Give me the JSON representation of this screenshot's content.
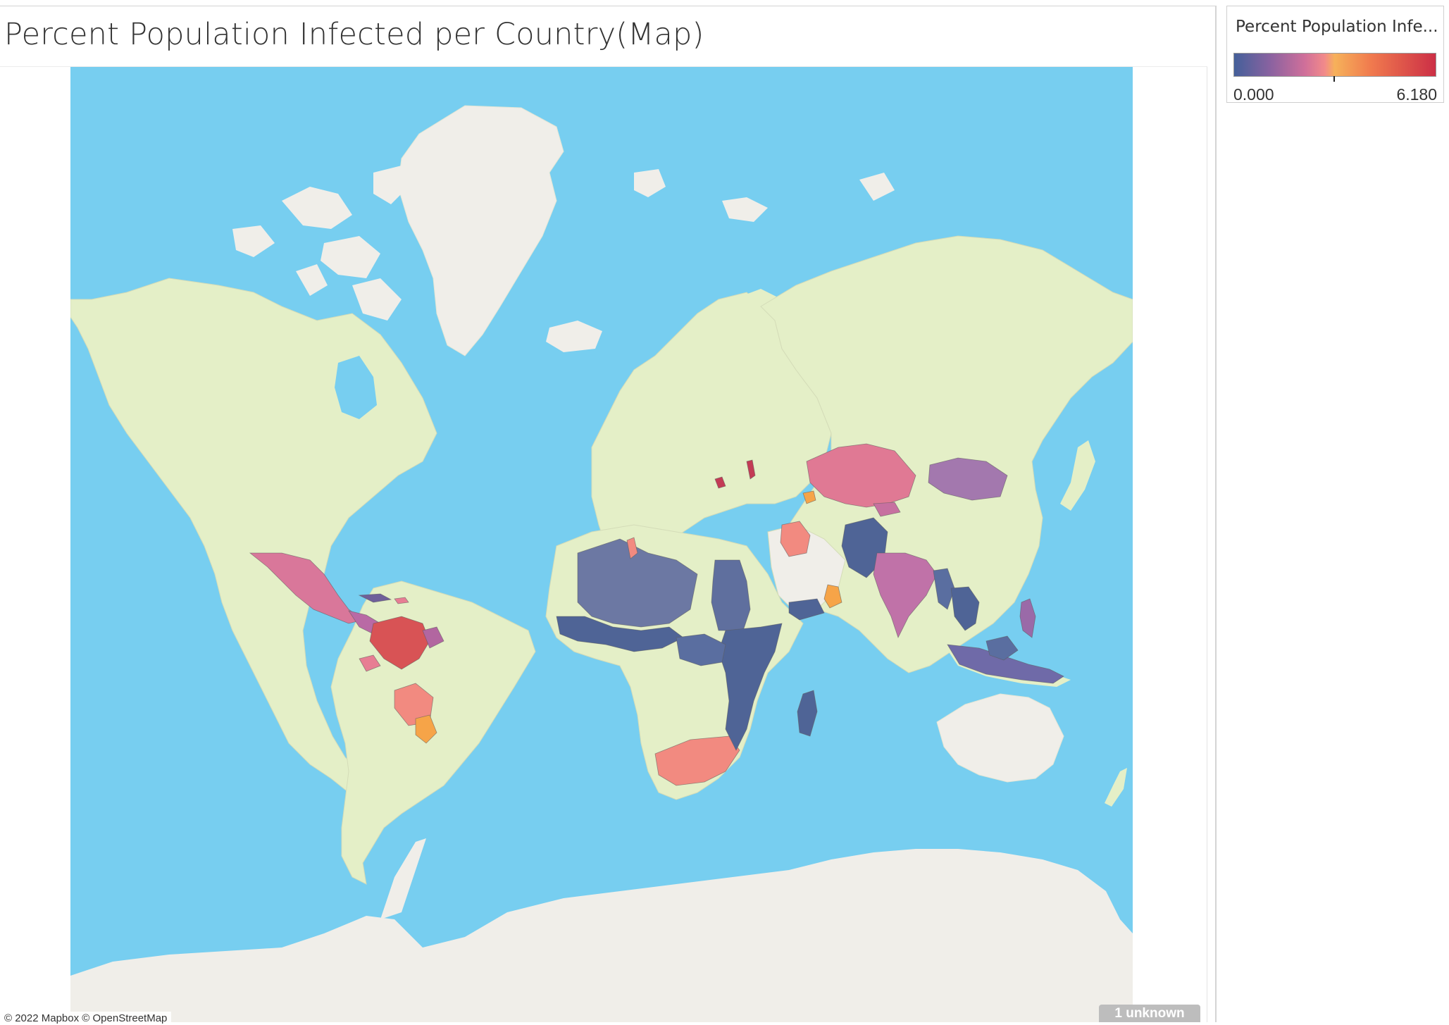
{
  "viz": {
    "title": "Percent Population Infected per Country(Map)"
  },
  "legend": {
    "title": "Percent Population Infe...",
    "min_label": "0.000",
    "max_label": "6.180",
    "min_value": 0.0,
    "max_value": 6.18,
    "center_value": 3.09
  },
  "map": {
    "attribution": "© 2022 Mapbox © OpenStreetMap",
    "unknown_label": "1 unknown",
    "ocean_color": "#77cef0",
    "land_color": "#e4efc7",
    "ice_color": "#f0eee9",
    "ramp_colors": [
      "#44609a",
      "#6f5f9a",
      "#b266a0",
      "#e77d93",
      "#f6ab56",
      "#ec6e4c",
      "#cc2f46"
    ]
  }
}
